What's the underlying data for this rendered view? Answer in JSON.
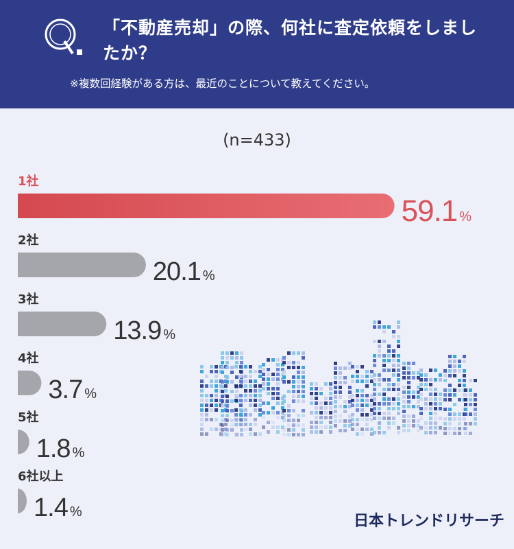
{
  "header": {
    "question": "「不動産売却」の際、何社に査定依頼をしましたか？",
    "note": "※複数回経験がある方は、最近のことについて教えてください。"
  },
  "sample": "(n=433)",
  "brand": "日本トレンドリサーチ",
  "colors": {
    "highlight": "#d9525a",
    "bar_gray": "#a4a6ab",
    "header_bg": "#2f3c8a"
  },
  "chart_data": {
    "type": "bar",
    "orientation": "horizontal",
    "unit": "%",
    "categories": [
      "1社",
      "2社",
      "3社",
      "4社",
      "5社",
      "6社以上"
    ],
    "values": [
      59.1,
      20.1,
      13.9,
      3.7,
      1.8,
      1.4
    ],
    "highlight_index": 0
  }
}
